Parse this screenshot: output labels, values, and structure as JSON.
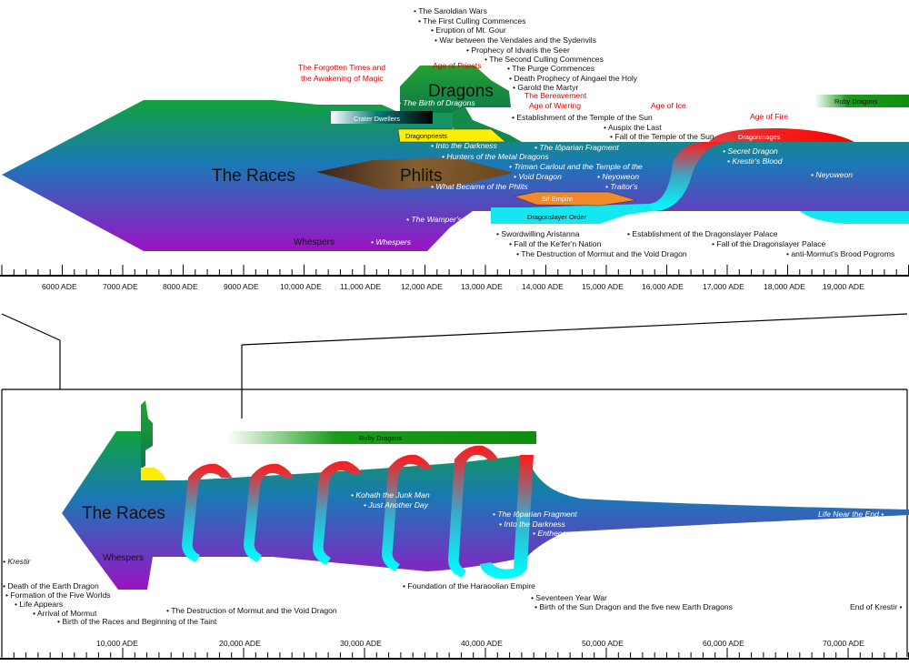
{
  "top": {
    "title": "The Races",
    "phlits": "Phlits",
    "dragons": "Dragons",
    "whespers": "Whespers",
    "whespers_italic": "• Whespers",
    "bands": {
      "crater_dwellers": "Crater Dwellers",
      "dragonpriests": "Dragonpriests",
      "ruby_dragons": "Ruby Dragons",
      "dragonmages": "Dragonmages",
      "sif_empire": "Sif Empire",
      "dragonslayer_order": "Dragonslayer Order"
    },
    "ages": [
      "The Forgotten Times and",
      "the Awakening of Magic",
      "Age of Priests",
      "The Bereavement",
      "Age of Warring",
      "Age of Ice",
      "Age of Fire"
    ],
    "events_above": [
      "• The Saroldian Wars",
      "• The First Culling Commences",
      "• Eruption of Mt. Gour",
      "• War between the Vendales and the Sydenvils",
      "• Prophecy of Idvaris the Seer",
      "• The Second Culling Commences",
      "• The Purge Commences",
      "• Death Prophecy of Aingael the Holy",
      "• Garold the Martyr",
      "• Establishment of the Temple of the Sun",
      "• Auspix the Last",
      "• Fall of the Temple of the Sun"
    ],
    "italic_events": [
      "• The Birth of Dragons",
      "• Into the Darkness",
      "• Hunters of the Metal Dragons",
      "• The Iôparian Fragment",
      "• Triman Carlout and the Temple of the",
      "• Void Dragon",
      "• Neyoweon",
      "• What Became of the Phlits",
      "• Traitor's",
      "• The Wamper's Deed",
      "• Secret Dragon",
      "• Krestir's Blood",
      "• Neyoweon"
    ],
    "events_below": [
      "• Swordwilling Aristanna",
      "• Fall of the Ke'fer'n Nation",
      "• The Destruction of Mormut and the Void Dragon",
      "• Establishment of the Dragonslayer Palace",
      "• Fall of the Dragonslayer Palace",
      "• anti-Mormut's Brood Pogroms"
    ],
    "axis_labels": [
      "6000 ADE",
      "7000 ADE",
      "8000 ADE",
      "9000 ADE",
      "10,000 ADE",
      "11,000 ADE",
      "12,000 ADE",
      "13,000 ADE",
      "14,000 ADE",
      "15,000 ADE",
      "16,000 ADE",
      "17,000 ADE",
      "18,000 ADE",
      "19,000 ADE"
    ]
  },
  "bottom": {
    "title": "The Races",
    "whespers": "Whespers",
    "ruby_dragons": "Ruby Dragons",
    "italic_events": [
      "• Kohath the Junk Man",
      "• Just Another Day",
      "• The Iôparian Fragment",
      "• Into the Darkness",
      "• Entheogen",
      "Life Near the End •"
    ],
    "events_left": [
      "• Krestir",
      "• Death of the Earth Dragon",
      "• Formation of the Five Worlds",
      "• Life Appears",
      "• Arrival of Mormut",
      "• Birth of the Races and Beginning of the Taint",
      "• The Destruction of Mormut and the Void Dragon"
    ],
    "events_right": [
      "• Foundation of the Haraoolian Empire",
      "• Seventeen Year War",
      "• Birth of the Sun Dragon and the five new Earth Dragons",
      "End of Krestir •"
    ],
    "axis_labels": [
      "10,000 ADE",
      "20,000 ADE",
      "30,000 ADE",
      "40,000 ADE",
      "50,000 ADE",
      "60,000 ADE",
      "70,000 ADE"
    ]
  }
}
